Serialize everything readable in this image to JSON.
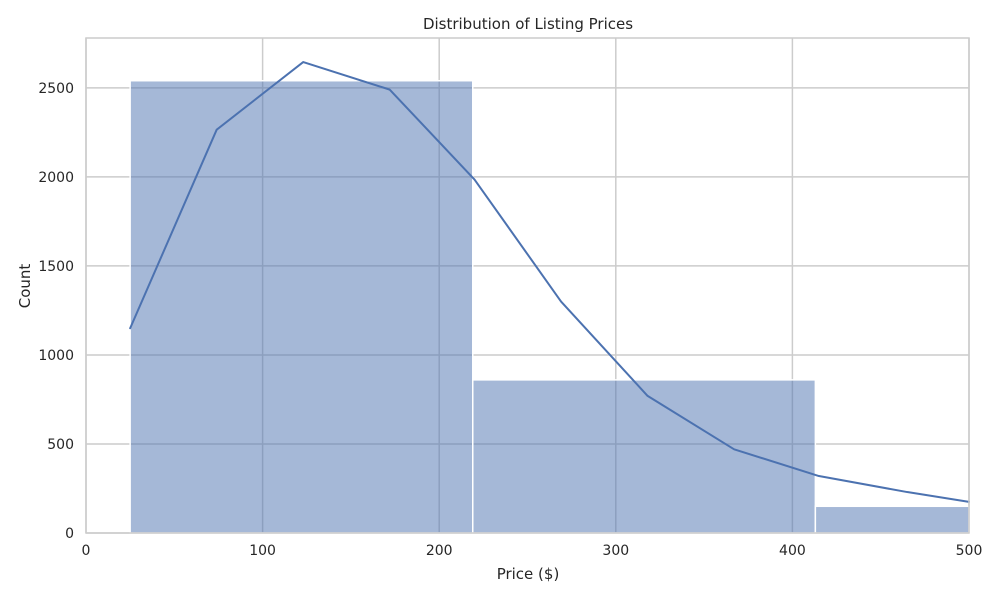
{
  "chart_data": {
    "type": "histogram",
    "title": "Distribution of Listing Prices",
    "xlabel": "Price ($)",
    "ylabel": "Count",
    "xlim": [
      0,
      500
    ],
    "ylim": [
      0,
      2780
    ],
    "x_ticks": [
      0,
      100,
      200,
      300,
      400,
      500
    ],
    "y_ticks": [
      0,
      500,
      1000,
      1500,
      2000,
      2500
    ],
    "grid": true,
    "bins": [
      {
        "x0": 25,
        "x1": 219,
        "count": 2540
      },
      {
        "x0": 219,
        "x1": 413,
        "count": 860
      },
      {
        "x0": 413,
        "x1": 500,
        "count": 150
      }
    ],
    "kde": {
      "x": [
        25,
        74,
        123,
        172,
        220,
        269,
        318,
        367,
        415,
        465,
        500
      ],
      "y": [
        1150,
        2265,
        2645,
        2490,
        1985,
        1300,
        770,
        470,
        320,
        230,
        175
      ]
    },
    "colors": {
      "bar_fill": "#4c72b0",
      "bar_fill_opacity": 0.5,
      "line": "#4c72b0",
      "grid": "#cccccc",
      "axes_edge": "#cccccc"
    }
  }
}
